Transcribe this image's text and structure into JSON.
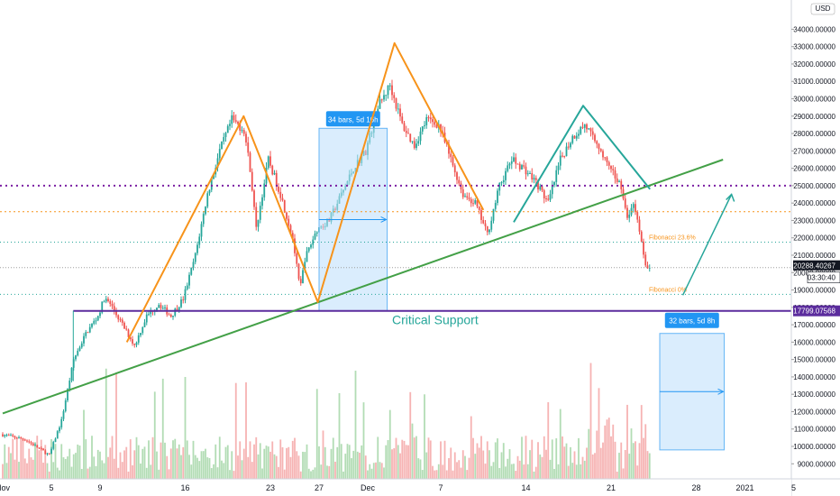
{
  "chart_data": {
    "type": "candlestick",
    "currency": "USD",
    "ylim": [
      8600,
      34800
    ],
    "y_ticks": [
      9000,
      10000,
      11000,
      12000,
      13000,
      14000,
      15000,
      16000,
      17000,
      18000,
      19000,
      20000,
      21000,
      22000,
      23000,
      24000,
      25000,
      26000,
      27000,
      28000,
      29000,
      30000,
      31000,
      32000,
      33000,
      34000
    ],
    "y_tick_labels": [
      "9000.00000",
      "10000.00000",
      "11000.00000",
      "12000.00000",
      "13000.00000",
      "14000.00000",
      "15000.00000",
      "16000.00000",
      "17000.00000",
      "18000.00000",
      "19000.00000",
      "20000.00000",
      "21000.00000",
      "22000.00000",
      "23000.00000",
      "24000.00000",
      "25000.00000",
      "26000.00000",
      "27000.00000",
      "28000.00000",
      "29000.00000",
      "30000.00000",
      "31000.00000",
      "32000.00000",
      "33000.00000",
      "34000.00000"
    ],
    "x_ticks": [
      {
        "label": "Nov",
        "day": 0
      },
      {
        "label": "5",
        "day": 4
      },
      {
        "label": "9",
        "day": 8
      },
      {
        "label": "16",
        "day": 15
      },
      {
        "label": "23",
        "day": 22
      },
      {
        "label": "27",
        "day": 26
      },
      {
        "label": "Dec",
        "day": 30
      },
      {
        "label": "7",
        "day": 36
      },
      {
        "label": "14",
        "day": 43
      },
      {
        "label": "21",
        "day": 50
      },
      {
        "label": "28",
        "day": 57
      },
      {
        "label": "2021",
        "day": 61
      },
      {
        "label": "5",
        "day": 65
      }
    ],
    "price_path": [
      [
        0,
        10700
      ],
      [
        2,
        10400
      ],
      [
        4,
        9500
      ],
      [
        5,
        11500
      ],
      [
        6,
        15000
      ],
      [
        7,
        16500
      ],
      [
        8,
        17500
      ],
      [
        8.5,
        18500
      ],
      [
        9,
        18200
      ],
      [
        10,
        17000
      ],
      [
        11,
        15800
      ],
      [
        12,
        17500
      ],
      [
        13,
        18200
      ],
      [
        14,
        17500
      ],
      [
        15,
        18500
      ],
      [
        16,
        21000
      ],
      [
        17,
        24500
      ],
      [
        18,
        27000
      ],
      [
        19,
        28800
      ],
      [
        20,
        28200
      ],
      [
        20.5,
        26000
      ],
      [
        21,
        22500
      ],
      [
        22,
        26500
      ],
      [
        23,
        24500
      ],
      [
        24,
        22000
      ],
      [
        24.6,
        19000
      ],
      [
        25,
        20800
      ],
      [
        26,
        22500
      ],
      [
        27,
        23000
      ],
      [
        28,
        24500
      ],
      [
        29,
        26000
      ],
      [
        30,
        27000
      ],
      [
        31,
        29500
      ],
      [
        32,
        30800
      ],
      [
        33,
        28500
      ],
      [
        34,
        27300
      ],
      [
        35,
        28800
      ],
      [
        36,
        28500
      ],
      [
        37,
        26500
      ],
      [
        38,
        24500
      ],
      [
        39,
        24000
      ],
      [
        40,
        22200
      ],
      [
        41,
        25000
      ],
      [
        42,
        26500
      ],
      [
        43,
        26000
      ],
      [
        44,
        25200
      ],
      [
        45,
        24000
      ],
      [
        46,
        26500
      ],
      [
        47,
        27800
      ],
      [
        48,
        28500
      ],
      [
        49,
        27500
      ],
      [
        50,
        26000
      ],
      [
        51,
        25000
      ],
      [
        51.5,
        23000
      ],
      [
        52,
        24000
      ],
      [
        52.5,
        22500
      ],
      [
        53,
        20300
      ]
    ],
    "last_price": "20288.40267",
    "countdown": "03:30:40",
    "support_level": 17799.07568,
    "support_label": "17799.07568",
    "critical_support_text": "Critical Support",
    "fib_labels": [
      "Fibonacci 23.6%",
      "Fibonacci 0%"
    ],
    "fib_levels": [
      21750,
      18750
    ],
    "horizontal_levels": {
      "purple_dotted": 25000,
      "orange_dotted": 23500
    },
    "range_boxes": [
      {
        "label": "34 bars, 5d 16h",
        "day_from": 26,
        "day_to": 31.6,
        "price_from": 17800,
        "price_to": 28300
      },
      {
        "label": "32 bars, 5d 8h",
        "day_from": 54,
        "day_to": 59.3,
        "price_from": 9800,
        "price_to": 16500
      }
    ],
    "orange_zigzag_1": [
      [
        10.2,
        16000
      ],
      [
        19.8,
        29000
      ],
      [
        25.9,
        18300
      ],
      [
        32.2,
        33200
      ],
      [
        39.5,
        23600
      ]
    ],
    "green_zigzag": [
      [
        42,
        22900
      ],
      [
        47.7,
        29600
      ],
      [
        53.2,
        24800
      ]
    ],
    "trendline": [
      [
        0,
        11900
      ],
      [
        59.2,
        26500
      ]
    ],
    "projection_arrow": [
      [
        55.9,
        18700
      ],
      [
        59.9,
        24500
      ]
    ],
    "colors": {
      "up": "#26a69a",
      "down": "#ef5350",
      "orange": "#f7931a",
      "green": "#43a047",
      "purple": "#5b2c9d",
      "box": "#bbdefb",
      "boxlabel": "#2196f3"
    }
  }
}
